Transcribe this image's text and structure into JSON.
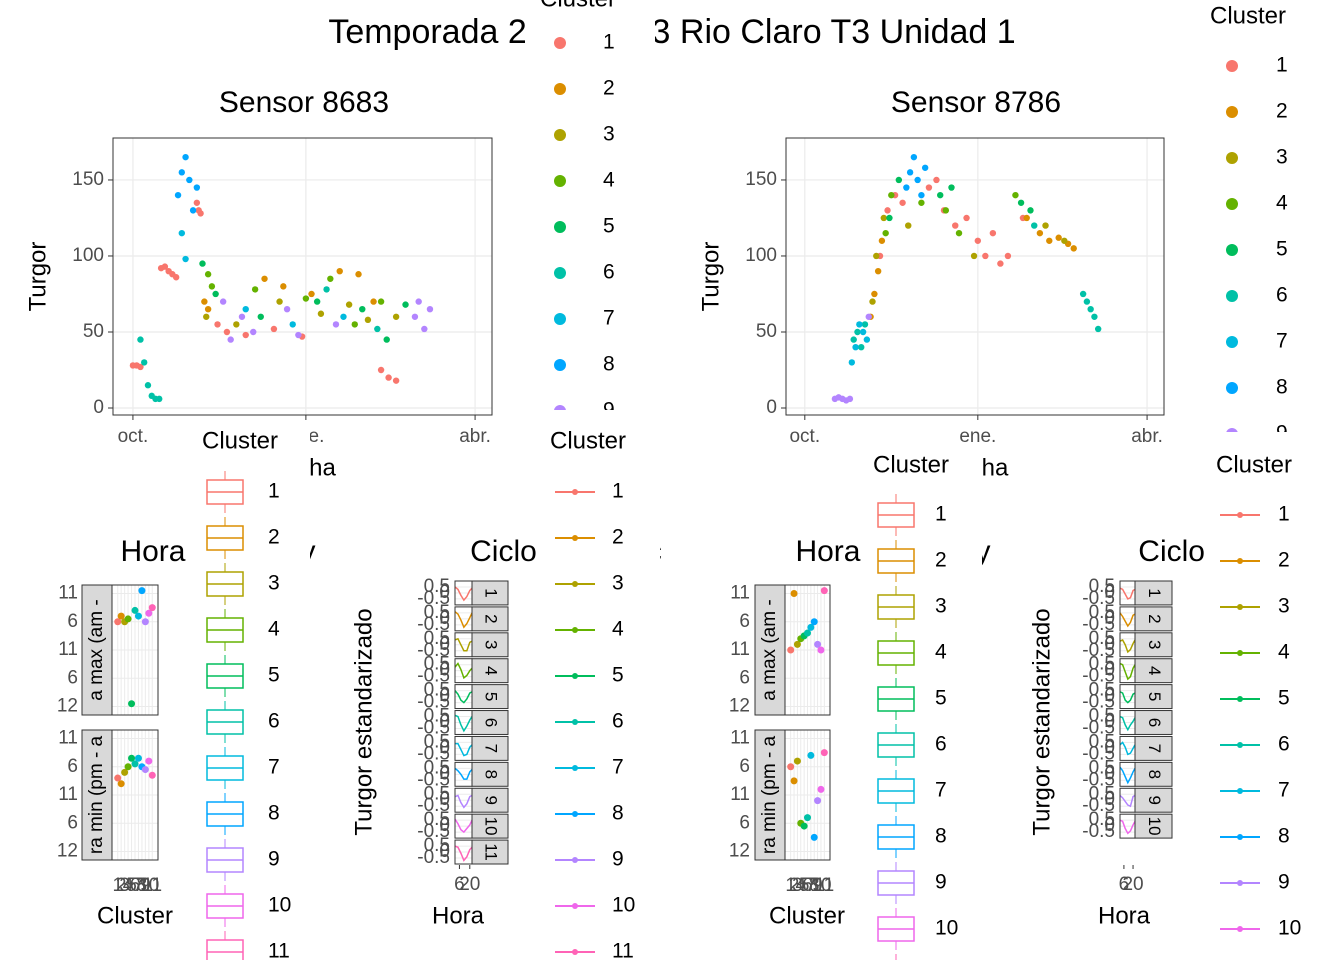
{
  "title": "Temporada 2022-2023 Rio Claro T3 Unidad 1",
  "chart_data": [
    {
      "type": "scatter",
      "title": "Sensor 8683",
      "x_label": "Fecha",
      "y_label": "Turgor",
      "legend_title": "Cluster",
      "xlim": [
        -10.6,
        191
      ],
      "xticks": [
        {
          "value": 0,
          "label": "oct."
        },
        {
          "value": 92,
          "label": "ene."
        },
        {
          "value": 182,
          "label": "abr."
        }
      ],
      "ylim": [
        -4.6,
        177.6
      ],
      "yticks": [
        0,
        50,
        100,
        150
      ],
      "grid": true,
      "series": [
        {
          "name": "1",
          "color": "#F8766D",
          "x": [
            0,
            2,
            4,
            15,
            17,
            19,
            21,
            23,
            34,
            35,
            36,
            45,
            50,
            60,
            75,
            90,
            132,
            136,
            140
          ],
          "values": [
            28,
            28,
            27,
            92,
            93,
            90,
            88,
            86,
            135,
            130,
            128,
            55,
            50,
            48,
            52,
            47,
            25,
            20,
            18
          ]
        },
        {
          "name": "2",
          "color": "#DB8E00",
          "x": [
            38,
            40,
            70,
            80,
            95,
            110,
            120,
            128
          ],
          "values": [
            70,
            65,
            85,
            80,
            75,
            90,
            88,
            70
          ]
        },
        {
          "name": "3",
          "color": "#AEA200",
          "x": [
            39,
            55,
            78,
            100,
            115,
            125,
            140
          ],
          "values": [
            60,
            55,
            70,
            62,
            68,
            58,
            60
          ]
        },
        {
          "name": "4",
          "color": "#64B200",
          "x": [
            40,
            42,
            65,
            92,
            105,
            118,
            132
          ],
          "values": [
            88,
            80,
            78,
            72,
            85,
            55,
            70
          ]
        },
        {
          "name": "5",
          "color": "#00BD5C",
          "x": [
            37,
            44,
            68,
            98,
            122,
            135,
            145
          ],
          "values": [
            95,
            75,
            60,
            70,
            65,
            45,
            68
          ]
        },
        {
          "name": "6",
          "color": "#00C1A7",
          "x": [
            4,
            6,
            8,
            10,
            12,
            14,
            103,
            130
          ],
          "values": [
            45,
            30,
            15,
            8,
            6,
            6,
            78,
            52
          ]
        },
        {
          "name": "7",
          "color": "#00BADE",
          "x": [
            26,
            28,
            60,
            85,
            112
          ],
          "values": [
            115,
            98,
            65,
            55,
            60
          ]
        },
        {
          "name": "8",
          "color": "#00A6FF",
          "x": [
            24,
            26,
            28,
            30,
            32,
            34
          ],
          "values": [
            140,
            155,
            165,
            150,
            130,
            145
          ]
        },
        {
          "name": "9",
          "color": "#B385FF",
          "x": [
            48,
            52,
            58,
            64,
            82,
            88,
            108,
            150,
            152,
            155,
            158
          ],
          "values": [
            70,
            45,
            60,
            50,
            65,
            48,
            55,
            60,
            70,
            52,
            65
          ]
        }
      ]
    },
    {
      "type": "scatter",
      "title": "Sensor 8786",
      "x_label": "Fecha",
      "y_label": "Turgor",
      "legend_title": "Cluster",
      "xlim": [
        -10,
        191
      ],
      "xticks": [
        {
          "value": 0,
          "label": "oct."
        },
        {
          "value": 92,
          "label": "ene."
        },
        {
          "value": 182,
          "label": "abr."
        }
      ],
      "ylim": [
        -4.6,
        177.6
      ],
      "yticks": [
        0,
        50,
        100,
        150
      ],
      "grid": true,
      "series": [
        {
          "name": "1",
          "color": "#F8766D",
          "x": [
            40,
            44,
            48,
            52,
            66,
            70,
            74,
            80,
            86,
            92,
            96,
            100,
            104,
            108,
            116
          ],
          "values": [
            100,
            130,
            140,
            135,
            145,
            150,
            130,
            120,
            125,
            110,
            100,
            115,
            95,
            100,
            125
          ]
        },
        {
          "name": "2",
          "color": "#DB8E00",
          "x": [
            35,
            37,
            39,
            41,
            118,
            125,
            130,
            135,
            140,
            143
          ],
          "values": [
            60,
            75,
            90,
            110,
            125,
            115,
            110,
            112,
            108,
            105
          ]
        },
        {
          "name": "3",
          "color": "#AEA200",
          "x": [
            36,
            38,
            42,
            55,
            90,
            128,
            138
          ],
          "values": [
            70,
            100,
            125,
            120,
            100,
            120,
            110
          ]
        },
        {
          "name": "4",
          "color": "#64B200",
          "x": [
            43,
            46,
            62,
            75,
            82,
            112
          ],
          "values": [
            115,
            140,
            135,
            130,
            115,
            140
          ]
        },
        {
          "name": "5",
          "color": "#00BD5C",
          "x": [
            45,
            50,
            72,
            78,
            115,
            120
          ],
          "values": [
            125,
            150,
            140,
            145,
            135,
            130
          ]
        },
        {
          "name": "6",
          "color": "#00C1A7",
          "x": [
            26,
            28,
            30,
            32,
            122,
            148,
            150,
            152,
            154,
            156
          ],
          "values": [
            45,
            50,
            40,
            55,
            120,
            75,
            70,
            65,
            60,
            52
          ]
        },
        {
          "name": "7",
          "color": "#00BADE",
          "x": [
            25,
            27,
            29,
            31,
            33
          ],
          "values": [
            30,
            40,
            55,
            50,
            45
          ]
        },
        {
          "name": "8",
          "color": "#00A6FF",
          "x": [
            54,
            56,
            58,
            60,
            62,
            64
          ],
          "values": [
            145,
            155,
            165,
            150,
            140,
            158
          ]
        },
        {
          "name": "9",
          "color": "#B385FF",
          "x": [
            16,
            18,
            20,
            22,
            24,
            34
          ],
          "values": [
            6,
            7,
            6,
            5,
            6,
            60
          ]
        }
      ]
    },
    {
      "type": "dot",
      "title": "Hora del mín y",
      "x_label": "Cluster",
      "legend_title": "Cluster",
      "facets": [
        "a max (am -",
        "ra min (pm - a"
      ],
      "ylim": [
        -0.3,
        4.3
      ],
      "yticks": [
        {
          "value": 4,
          "label": "11"
        },
        {
          "value": 3,
          "label": "6"
        },
        {
          "value": 2,
          "label": "11"
        },
        {
          "value": 1,
          "label": "6"
        },
        {
          "value": 0,
          "label": "12"
        }
      ],
      "series": [
        {
          "name": "1",
          "color": "#F8766D",
          "values": [
            3.0,
            2.6
          ]
        },
        {
          "name": "2",
          "color": "#DB8E00",
          "values": [
            3.2,
            2.4
          ]
        },
        {
          "name": "3",
          "color": "#AEA200",
          "values": [
            3.0,
            2.8
          ]
        },
        {
          "name": "4",
          "color": "#64B200",
          "values": [
            3.1,
            3.0
          ]
        },
        {
          "name": "5",
          "color": "#00BD5C",
          "values": [
            0.1,
            3.3
          ]
        },
        {
          "name": "6",
          "color": "#00C1A7",
          "values": [
            3.4,
            3.1
          ]
        },
        {
          "name": "7",
          "color": "#00BADE",
          "values": [
            3.2,
            3.3
          ]
        },
        {
          "name": "8",
          "color": "#00A6FF",
          "values": [
            4.1,
            3.0
          ]
        },
        {
          "name": "9",
          "color": "#B385FF",
          "values": [
            3.0,
            2.9
          ]
        },
        {
          "name": "10",
          "color": "#EF67EB",
          "values": [
            3.3,
            3.2
          ]
        },
        {
          "name": "11",
          "color": "#FF63B6",
          "values": [
            3.5,
            2.7
          ]
        }
      ]
    },
    {
      "type": "line",
      "title": "Ciclo horario c",
      "x_label": "Hora",
      "y_label": "Turgor estandarizado",
      "legend_title": "Cluster",
      "x": [
        0,
        4,
        8,
        12,
        16,
        20,
        23
      ],
      "xlim": [
        0,
        23
      ],
      "xticks": [
        20,
        6
      ],
      "ylim": [
        -1,
        1
      ],
      "yticks": [
        -0.5,
        0,
        0.5
      ],
      "series": [
        {
          "name": "1",
          "color": "#F8766D",
          "values": [
            0.5,
            0.3,
            -0.2,
            -0.6,
            -0.3,
            0.2,
            0.4
          ]
        },
        {
          "name": "2",
          "color": "#DB8E00",
          "values": [
            0.6,
            0.4,
            -0.1,
            -0.7,
            -0.4,
            0.1,
            0.5
          ]
        },
        {
          "name": "3",
          "color": "#AEA200",
          "values": [
            0.4,
            0.5,
            0.0,
            -0.5,
            -0.5,
            0.2,
            0.3
          ]
        },
        {
          "name": "4",
          "color": "#64B200",
          "values": [
            0.3,
            0.6,
            0.1,
            -0.6,
            -0.4,
            0.0,
            0.2
          ]
        },
        {
          "name": "5",
          "color": "#00BD5C",
          "values": [
            0.5,
            0.2,
            -0.3,
            -0.5,
            -0.2,
            0.3,
            0.4
          ]
        },
        {
          "name": "6",
          "color": "#00C1A7",
          "values": [
            0.6,
            0.5,
            -0.2,
            -0.7,
            -0.3,
            0.2,
            0.5
          ]
        },
        {
          "name": "7",
          "color": "#00BADE",
          "values": [
            0.4,
            0.4,
            -0.1,
            -0.6,
            -0.5,
            0.1,
            0.3
          ]
        },
        {
          "name": "8",
          "color": "#00A6FF",
          "values": [
            0.5,
            0.3,
            0.0,
            -0.4,
            -0.4,
            0.2,
            0.4
          ]
        },
        {
          "name": "9",
          "color": "#B385FF",
          "values": [
            0.3,
            0.4,
            -0.2,
            -0.6,
            -0.3,
            0.3,
            0.4
          ]
        },
        {
          "name": "10",
          "color": "#EF67EB",
          "values": [
            0.6,
            0.2,
            -0.3,
            -0.5,
            -0.2,
            0.1,
            0.5
          ]
        },
        {
          "name": "11",
          "color": "#FF63B6",
          "values": [
            0.5,
            0.4,
            -0.1,
            -0.7,
            -0.4,
            0.2,
            0.4
          ]
        }
      ]
    },
    {
      "type": "dot",
      "title": "Hora del mín y",
      "x_label": "Cluster",
      "legend_title": "Cluster",
      "facets": [
        "a max (am -",
        "ra min (pm - a"
      ],
      "ylim": [
        -0.3,
        4.3
      ],
      "yticks": [
        {
          "value": 4,
          "label": "11"
        },
        {
          "value": 3,
          "label": "6"
        },
        {
          "value": 2,
          "label": "11"
        },
        {
          "value": 1,
          "label": "6"
        },
        {
          "value": 0,
          "label": "12"
        }
      ],
      "series": [
        {
          "name": "1",
          "color": "#F8766D",
          "values": [
            2.0,
            3.0
          ]
        },
        {
          "name": "2",
          "color": "#DB8E00",
          "values": [
            4.0,
            2.5
          ]
        },
        {
          "name": "3",
          "color": "#AEA200",
          "values": [
            2.2,
            3.2
          ]
        },
        {
          "name": "4",
          "color": "#64B200",
          "values": [
            2.4,
            1.0
          ]
        },
        {
          "name": "5",
          "color": "#00BD5C",
          "values": [
            2.5,
            0.9
          ]
        },
        {
          "name": "6",
          "color": "#00C1A7",
          "values": [
            2.6,
            1.2
          ]
        },
        {
          "name": "7",
          "color": "#00BADE",
          "values": [
            2.8,
            3.4
          ]
        },
        {
          "name": "8",
          "color": "#00A6FF",
          "values": [
            3.0,
            0.5
          ]
        },
        {
          "name": "9",
          "color": "#B385FF",
          "values": [
            2.2,
            1.8
          ]
        },
        {
          "name": "10",
          "color": "#EF67EB",
          "values": [
            2.0,
            2.2
          ]
        },
        {
          "name": "11",
          "color": "#FF63B6",
          "values": [
            4.1,
            3.5
          ]
        }
      ]
    },
    {
      "type": "line",
      "title": "Ciclo horario d",
      "x_label": "Hora",
      "y_label": "Turgor estandarizado",
      "legend_title": "Cluster",
      "x": [
        0,
        4,
        8,
        12,
        16,
        20,
        23
      ],
      "xlim": [
        0,
        23
      ],
      "xticks": [
        20,
        6
      ],
      "ylim": [
        -1,
        1
      ],
      "yticks": [
        -0.5,
        0,
        0.5
      ],
      "series": [
        {
          "name": "1",
          "color": "#F8766D",
          "values": [
            0.4,
            0.3,
            -0.1,
            -0.5,
            -0.4,
            0.2,
            0.3
          ]
        },
        {
          "name": "2",
          "color": "#DB8E00",
          "values": [
            0.5,
            0.2,
            -0.2,
            -0.6,
            -0.3,
            0.3,
            0.4
          ]
        },
        {
          "name": "3",
          "color": "#AEA200",
          "values": [
            0.3,
            0.4,
            0.0,
            -0.6,
            -0.4,
            0.1,
            0.4
          ]
        },
        {
          "name": "4",
          "color": "#64B200",
          "values": [
            0.6,
            0.5,
            -0.1,
            -0.7,
            -0.5,
            0.2,
            0.5
          ]
        },
        {
          "name": "5",
          "color": "#00BD5C",
          "values": [
            0.4,
            0.3,
            -0.3,
            -0.5,
            -0.3,
            0.2,
            0.3
          ]
        },
        {
          "name": "6",
          "color": "#00C1A7",
          "values": [
            0.5,
            0.4,
            -0.2,
            -0.6,
            -0.2,
            0.1,
            0.4
          ]
        },
        {
          "name": "7",
          "color": "#00BADE",
          "values": [
            0.3,
            0.5,
            0.1,
            -0.5,
            -0.4,
            0.0,
            0.3
          ]
        },
        {
          "name": "8",
          "color": "#00A6FF",
          "values": [
            0.6,
            0.3,
            -0.2,
            -0.7,
            -0.3,
            0.2,
            0.5
          ]
        },
        {
          "name": "9",
          "color": "#B385FF",
          "values": [
            0.4,
            0.2,
            -0.1,
            -0.4,
            -0.5,
            0.3,
            0.4
          ]
        },
        {
          "name": "10",
          "color": "#EF67EB",
          "values": [
            0.5,
            0.4,
            -0.2,
            -0.6,
            -0.4,
            0.1,
            0.4
          ]
        }
      ]
    }
  ]
}
